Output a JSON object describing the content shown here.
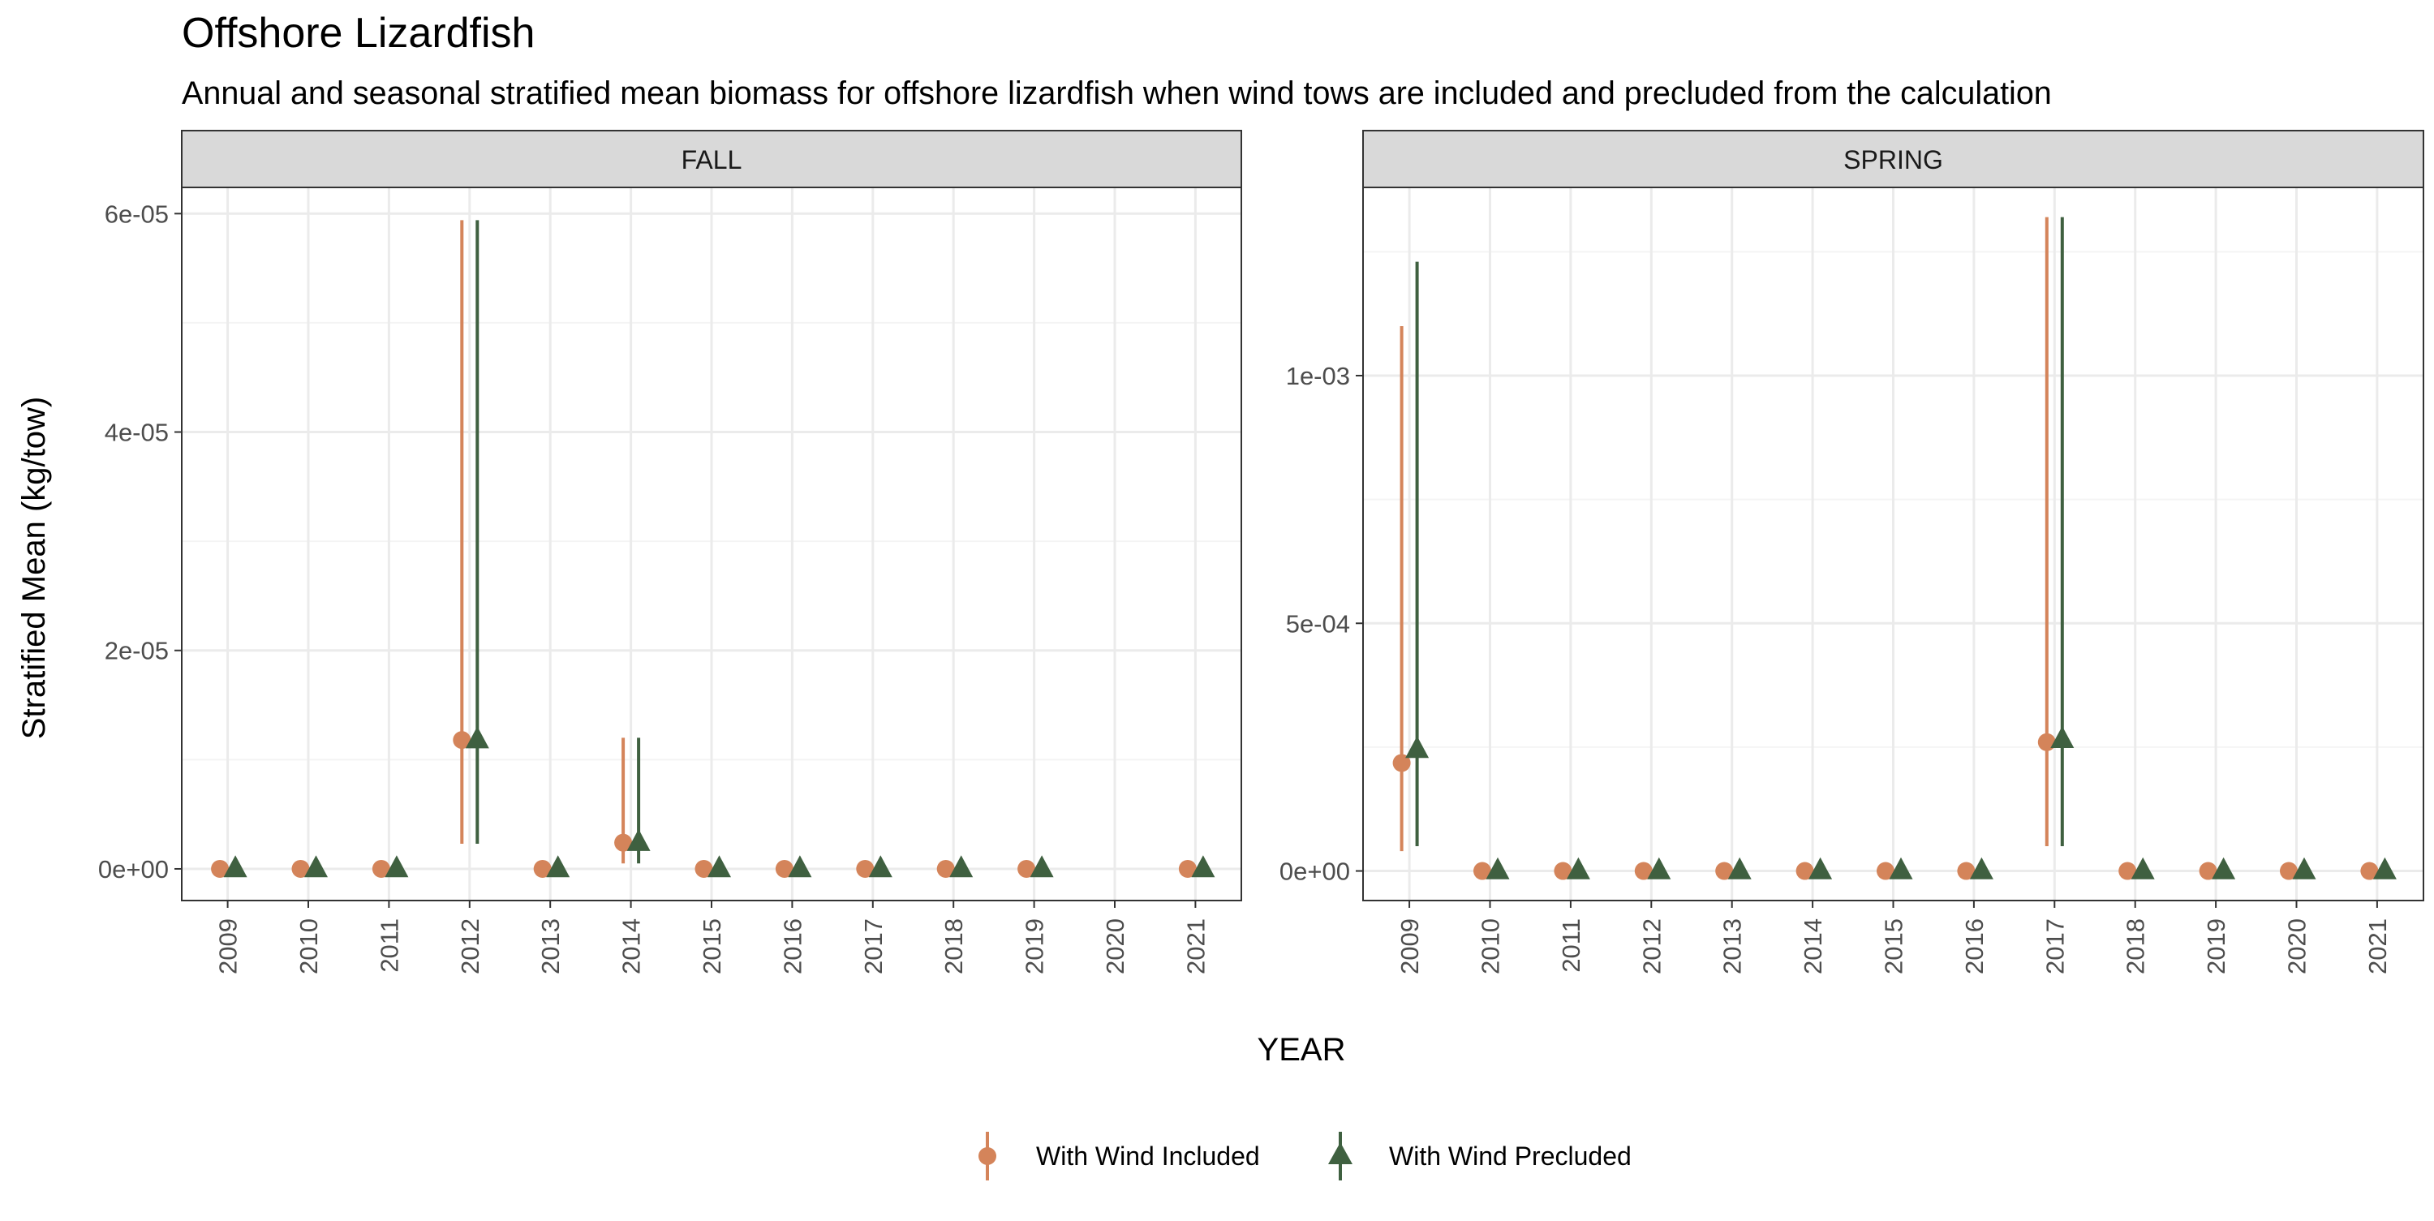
{
  "title": "Offshore Lizardfish",
  "subtitle": "Annual and seasonal stratified mean biomass for offshore lizardfish when wind tows are included and precluded from the calculation",
  "ylabel": "Stratified Mean (kg/tow)",
  "xlabel": "YEAR",
  "legend": {
    "placement": "bottom",
    "items": [
      "With Wind Included",
      "With Wind Precluded"
    ]
  },
  "colors": {
    "included": "#D4845A",
    "precluded": "#3F6040",
    "strip_fill": "#D9D9D9",
    "panel_border": "#333333",
    "grid_major": "#EBEBEB",
    "grid_minor": "#F4F4F4"
  },
  "chart_data": [
    {
      "type": "scatter",
      "panel": "FALL",
      "x_categories": [
        "2009",
        "2010",
        "2011",
        "2012",
        "2013",
        "2014",
        "2015",
        "2016",
        "2017",
        "2018",
        "2019",
        "2020",
        "2021"
      ],
      "y_ticks": [
        {
          "value": 0,
          "label": "0e+00"
        },
        {
          "value": 2e-05,
          "label": "2e-05"
        },
        {
          "value": 4e-05,
          "label": "4e-05"
        },
        {
          "value": 6e-05,
          "label": "6e-05"
        }
      ],
      "ylim": [
        -2.9e-06,
        6.24e-05
      ],
      "series": [
        {
          "name": "With Wind Included",
          "marker": "circle",
          "points": [
            {
              "year": "2009",
              "mean": 0,
              "lower": 0,
              "upper": 0
            },
            {
              "year": "2010",
              "mean": 0,
              "lower": 0,
              "upper": 0
            },
            {
              "year": "2011",
              "mean": 0,
              "lower": 0,
              "upper": 0
            },
            {
              "year": "2012",
              "mean": 1.18e-05,
              "lower": 2.3e-06,
              "upper": 5.94e-05
            },
            {
              "year": "2013",
              "mean": 0,
              "lower": 0,
              "upper": 0
            },
            {
              "year": "2014",
              "mean": 2.4e-06,
              "lower": 5e-07,
              "upper": 1.2e-05
            },
            {
              "year": "2015",
              "mean": 0,
              "lower": 0,
              "upper": 0
            },
            {
              "year": "2016",
              "mean": 0,
              "lower": 0,
              "upper": 0
            },
            {
              "year": "2017",
              "mean": 0,
              "lower": 0,
              "upper": 0
            },
            {
              "year": "2018",
              "mean": 0,
              "lower": 0,
              "upper": 0
            },
            {
              "year": "2019",
              "mean": 0,
              "lower": 0,
              "upper": 0
            },
            {
              "year": "2021",
              "mean": 0,
              "lower": 0,
              "upper": 0
            }
          ]
        },
        {
          "name": "With Wind Precluded",
          "marker": "triangle",
          "points": [
            {
              "year": "2009",
              "mean": 0,
              "lower": 0,
              "upper": 0
            },
            {
              "year": "2010",
              "mean": 0,
              "lower": 0,
              "upper": 0
            },
            {
              "year": "2011",
              "mean": 0,
              "lower": 0,
              "upper": 0
            },
            {
              "year": "2012",
              "mean": 1.18e-05,
              "lower": 2.3e-06,
              "upper": 5.94e-05
            },
            {
              "year": "2013",
              "mean": 0,
              "lower": 0,
              "upper": 0
            },
            {
              "year": "2014",
              "mean": 2.4e-06,
              "lower": 5e-07,
              "upper": 1.2e-05
            },
            {
              "year": "2015",
              "mean": 0,
              "lower": 0,
              "upper": 0
            },
            {
              "year": "2016",
              "mean": 0,
              "lower": 0,
              "upper": 0
            },
            {
              "year": "2017",
              "mean": 0,
              "lower": 0,
              "upper": 0
            },
            {
              "year": "2018",
              "mean": 0,
              "lower": 0,
              "upper": 0
            },
            {
              "year": "2019",
              "mean": 0,
              "lower": 0,
              "upper": 0
            },
            {
              "year": "2021",
              "mean": 0,
              "lower": 0,
              "upper": 0
            }
          ]
        }
      ]
    },
    {
      "type": "scatter",
      "panel": "SPRING",
      "x_categories": [
        "2009",
        "2010",
        "2011",
        "2012",
        "2013",
        "2014",
        "2015",
        "2016",
        "2017",
        "2018",
        "2019",
        "2020",
        "2021"
      ],
      "y_ticks": [
        {
          "value": 0,
          "label": "0e+00"
        },
        {
          "value": 0.0005,
          "label": "5e-04"
        },
        {
          "value": 0.001,
          "label": "1e-03"
        }
      ],
      "ylim": [
        -5.97e-05,
        0.00138
      ],
      "series": [
        {
          "name": "With Wind Included",
          "marker": "circle",
          "points": [
            {
              "year": "2009",
              "mean": 0.000218,
              "lower": 4e-05,
              "upper": 0.0011
            },
            {
              "year": "2010",
              "mean": 0,
              "lower": 0,
              "upper": 0
            },
            {
              "year": "2011",
              "mean": 0,
              "lower": 0,
              "upper": 0
            },
            {
              "year": "2012",
              "mean": 0,
              "lower": 0,
              "upper": 0
            },
            {
              "year": "2013",
              "mean": 0,
              "lower": 0,
              "upper": 0
            },
            {
              "year": "2014",
              "mean": 0,
              "lower": 0,
              "upper": 0
            },
            {
              "year": "2015",
              "mean": 0,
              "lower": 0,
              "upper": 0
            },
            {
              "year": "2016",
              "mean": 0,
              "lower": 0,
              "upper": 0
            },
            {
              "year": "2017",
              "mean": 0.00026,
              "lower": 5e-05,
              "upper": 0.00132
            },
            {
              "year": "2018",
              "mean": 0,
              "lower": 0,
              "upper": 0
            },
            {
              "year": "2019",
              "mean": 0,
              "lower": 0,
              "upper": 0
            },
            {
              "year": "2020",
              "mean": 0,
              "lower": 0,
              "upper": 0
            },
            {
              "year": "2021",
              "mean": 0,
              "lower": 0,
              "upper": 0
            }
          ]
        },
        {
          "name": "With Wind Precluded",
          "marker": "triangle",
          "points": [
            {
              "year": "2009",
              "mean": 0.000245,
              "lower": 5e-05,
              "upper": 0.00123
            },
            {
              "year": "2010",
              "mean": 0,
              "lower": 0,
              "upper": 0
            },
            {
              "year": "2011",
              "mean": 0,
              "lower": 0,
              "upper": 0
            },
            {
              "year": "2012",
              "mean": 0,
              "lower": 0,
              "upper": 0
            },
            {
              "year": "2013",
              "mean": 0,
              "lower": 0,
              "upper": 0
            },
            {
              "year": "2014",
              "mean": 0,
              "lower": 0,
              "upper": 0
            },
            {
              "year": "2015",
              "mean": 0,
              "lower": 0,
              "upper": 0
            },
            {
              "year": "2016",
              "mean": 0,
              "lower": 0,
              "upper": 0
            },
            {
              "year": "2017",
              "mean": 0.000265,
              "lower": 5e-05,
              "upper": 0.00132
            },
            {
              "year": "2018",
              "mean": 0,
              "lower": 0,
              "upper": 0
            },
            {
              "year": "2019",
              "mean": 0,
              "lower": 0,
              "upper": 0
            },
            {
              "year": "2020",
              "mean": 0,
              "lower": 0,
              "upper": 0
            },
            {
              "year": "2021",
              "mean": 0,
              "lower": 0,
              "upper": 0
            }
          ]
        }
      ]
    }
  ]
}
